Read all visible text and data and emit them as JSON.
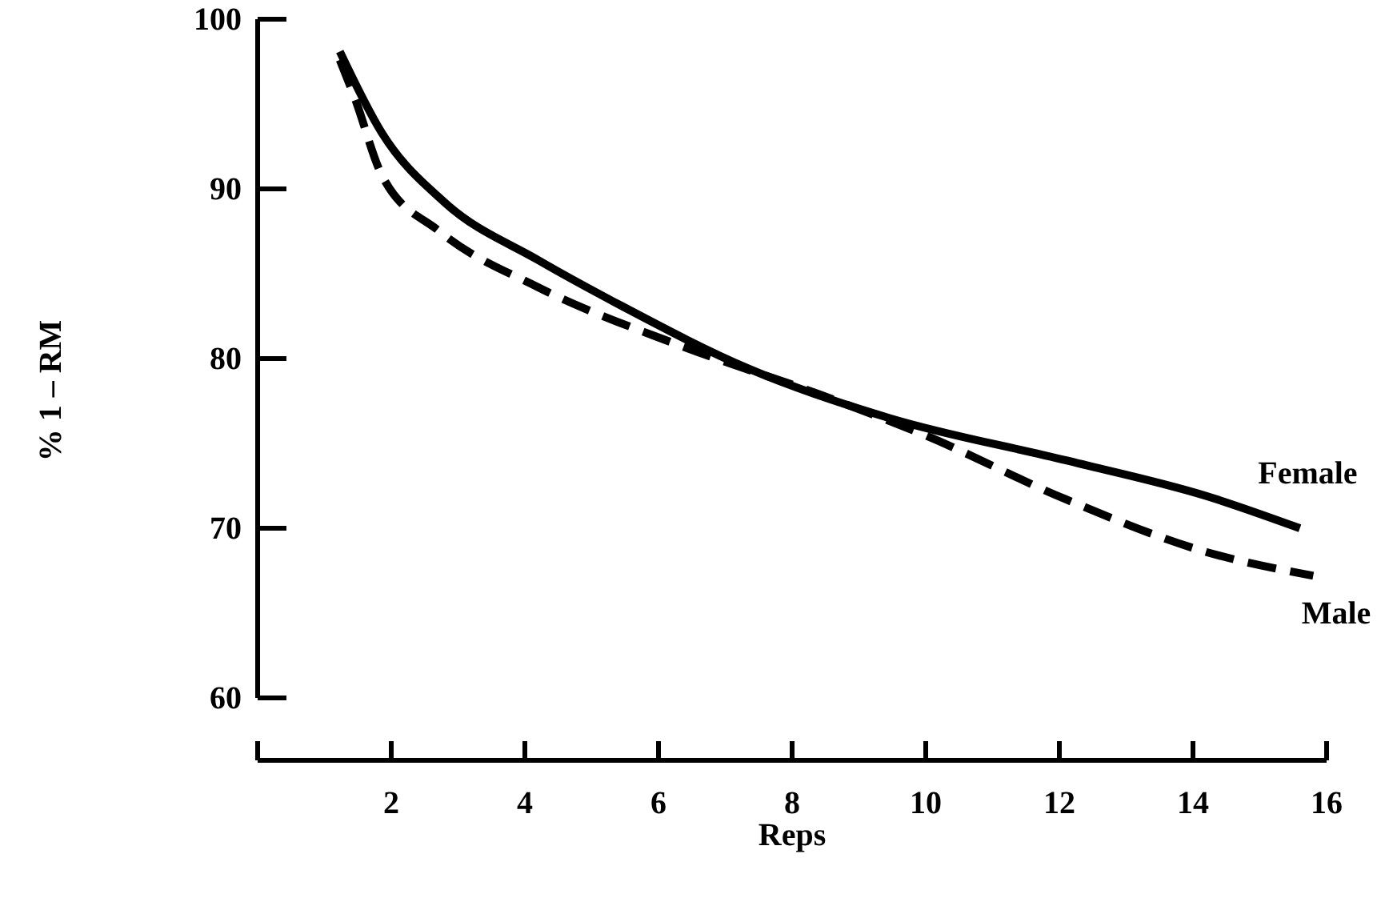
{
  "chart_data": {
    "type": "line",
    "xlabel": "Reps",
    "ylabel": "% 1 – RM",
    "xlim": [
      0,
      16
    ],
    "xticks": [
      {
        "value": 0,
        "label": null
      },
      2,
      4,
      6,
      8,
      10,
      12,
      14,
      16
    ],
    "ylim": [
      60,
      100
    ],
    "yticks": [
      60,
      70,
      80,
      90,
      100
    ],
    "grid": false,
    "legend": false,
    "marker": "none",
    "series": [
      {
        "name": "Female",
        "color": "#000000",
        "line_style": "solid",
        "x": [
          1.23,
          1.86,
          2.8,
          4.2,
          5.45,
          7.35,
          9.45,
          12.1,
          14.2,
          15.6
        ],
        "values": [
          98.1,
          93.3,
          89.2,
          85.8,
          83.1,
          79.4,
          76.5,
          74.0,
          71.9,
          70.0
        ]
      },
      {
        "name": "Male",
        "color": "#000000",
        "line_style": "dashed",
        "x": [
          1.23,
          1.45,
          1.86,
          2.72,
          4.2,
          6.3,
          8.4,
          9.98,
          12.1,
          14.2,
          15.8
        ],
        "values": [
          97.6,
          95.4,
          90.8,
          87.5,
          84.2,
          80.8,
          77.9,
          75.5,
          71.7,
          68.6,
          67.2
        ]
      }
    ]
  }
}
